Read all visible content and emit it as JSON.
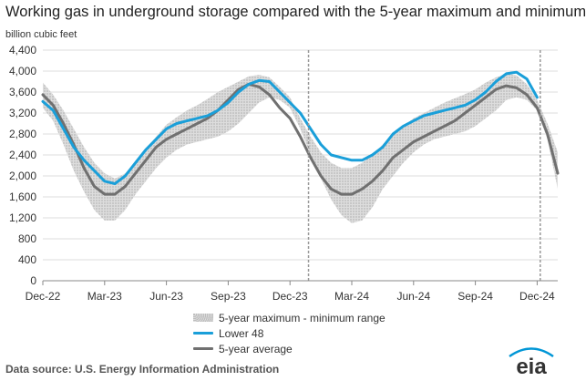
{
  "chart_data": {
    "type": "line",
    "title": "Working gas in underground storage compared with the 5-year maximum and minimum",
    "ylabel": "billion cubic feet",
    "xlabel": "",
    "ylim": [
      0,
      4400
    ],
    "yticks": [
      0,
      400,
      800,
      1200,
      1600,
      2000,
      2400,
      2800,
      3200,
      3600,
      4000,
      4400
    ],
    "ytick_labels": [
      "0",
      "400",
      "800",
      "1,200",
      "1,600",
      "2,000",
      "2,400",
      "2,800",
      "3,200",
      "3,600",
      "4,000",
      "4,400"
    ],
    "xlim": [
      0,
      25
    ],
    "xticks": [
      0,
      3,
      6,
      9,
      12,
      15,
      18,
      21,
      24
    ],
    "xtick_labels": [
      "Dec-22",
      "Mar-23",
      "Jun-23",
      "Sep-23",
      "Dec-23",
      "Mar-24",
      "Jun-24",
      "Sep-24",
      "Dec-24"
    ],
    "grid": "horizontal",
    "vertical_markers": [
      12.9,
      24.15
    ],
    "legend_position": "bottom",
    "band": {
      "name": "5-year maximum - minimum range",
      "x": [
        0,
        0.5,
        1,
        1.5,
        2,
        2.5,
        3,
        3.5,
        4,
        4.5,
        5,
        5.5,
        6,
        6.5,
        7,
        7.5,
        8,
        8.5,
        9,
        9.5,
        10,
        10.5,
        11,
        11.5,
        12,
        12.5,
        13,
        13.5,
        14,
        14.5,
        15,
        15.5,
        16,
        16.5,
        17,
        17.5,
        18,
        18.5,
        19,
        19.5,
        20,
        20.5,
        21,
        21.5,
        22,
        22.5,
        23,
        23.5,
        24,
        24.5,
        25
      ],
      "upper": [
        3780,
        3550,
        3250,
        2900,
        2550,
        2250,
        2050,
        1950,
        2050,
        2250,
        2500,
        2750,
        2980,
        3120,
        3250,
        3350,
        3470,
        3600,
        3700,
        3800,
        3900,
        3930,
        3880,
        3700,
        3500,
        3100,
        2750,
        2450,
        2250,
        2150,
        2150,
        2250,
        2400,
        2600,
        2800,
        2950,
        3100,
        3200,
        3300,
        3400,
        3480,
        3560,
        3650,
        3780,
        3880,
        3950,
        3920,
        3750,
        3450,
        3000,
        2450
      ],
      "lower": [
        3300,
        3050,
        2600,
        2100,
        1700,
        1350,
        1150,
        1150,
        1350,
        1650,
        1900,
        2150,
        2350,
        2500,
        2600,
        2650,
        2700,
        2750,
        2850,
        3000,
        3200,
        3400,
        3500,
        3450,
        3300,
        2900,
        2400,
        1950,
        1550,
        1250,
        1100,
        1150,
        1400,
        1750,
        2000,
        2250,
        2450,
        2600,
        2700,
        2750,
        2800,
        2850,
        2950,
        3100,
        3250,
        3450,
        3500,
        3450,
        3250,
        2700,
        1750
      ]
    },
    "series": [
      {
        "name": "Lower 48",
        "color": "#1a9fd9",
        "x": [
          0,
          0.5,
          1,
          1.5,
          2,
          2.5,
          3,
          3.5,
          4,
          4.5,
          5,
          5.5,
          6,
          6.5,
          7,
          7.5,
          8,
          8.5,
          9,
          9.5,
          10,
          10.5,
          11,
          11.5,
          12,
          12.5,
          13,
          13.5,
          14,
          14.5,
          15,
          15.5,
          16,
          16.5,
          17,
          17.5,
          18,
          18.5,
          19,
          19.5,
          20,
          20.5,
          21,
          21.5,
          22,
          22.5,
          23,
          23.5,
          24
        ],
        "values": [
          3420,
          3250,
          2900,
          2550,
          2300,
          2100,
          1900,
          1850,
          2000,
          2250,
          2500,
          2700,
          2900,
          3000,
          3050,
          3100,
          3150,
          3250,
          3400,
          3600,
          3750,
          3820,
          3800,
          3600,
          3400,
          3200,
          2900,
          2600,
          2400,
          2350,
          2300,
          2300,
          2400,
          2550,
          2800,
          2950,
          3050,
          3150,
          3200,
          3250,
          3300,
          3350,
          3450,
          3600,
          3800,
          3950,
          3980,
          3850,
          3500
        ]
      },
      {
        "name": "5-year average",
        "color": "#707070",
        "x": [
          0,
          0.5,
          1,
          1.5,
          2,
          2.5,
          3,
          3.5,
          4,
          4.5,
          5,
          5.5,
          6,
          6.5,
          7,
          7.5,
          8,
          8.5,
          9,
          9.5,
          10,
          10.5,
          11,
          11.5,
          12,
          12.5,
          13,
          13.5,
          14,
          14.5,
          15,
          15.5,
          16,
          16.5,
          17,
          17.5,
          18,
          18.5,
          19,
          19.5,
          20,
          20.5,
          21,
          21.5,
          22,
          22.5,
          23,
          23.5,
          24,
          24.5,
          25
        ],
        "values": [
          3550,
          3350,
          3000,
          2600,
          2150,
          1800,
          1650,
          1650,
          1800,
          2050,
          2300,
          2550,
          2700,
          2800,
          2900,
          3000,
          3100,
          3250,
          3450,
          3650,
          3750,
          3700,
          3550,
          3300,
          3100,
          2750,
          2350,
          2000,
          1750,
          1650,
          1650,
          1750,
          1900,
          2100,
          2350,
          2500,
          2650,
          2750,
          2850,
          2950,
          3050,
          3200,
          3350,
          3500,
          3650,
          3720,
          3680,
          3550,
          3300,
          2800,
          2050
        ]
      }
    ]
  },
  "source": "Data source:  U.S. Energy Information Administration",
  "logo_text": "eia",
  "logo_color": "#0096d6"
}
